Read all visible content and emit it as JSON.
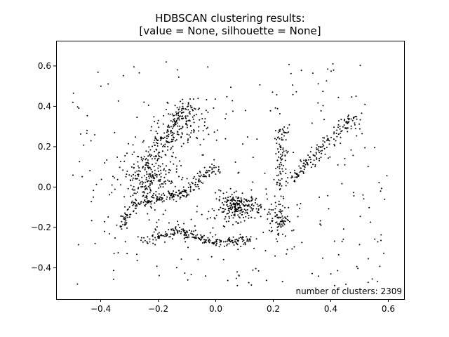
{
  "chart_data": {
    "type": "scatter",
    "title": "HDBSCAN clustering results:",
    "subtitle": "[value = None, silhouette = None]",
    "xlabel": "",
    "ylabel": "",
    "xlim": [
      -0.555,
      0.655
    ],
    "ylim": [
      -0.555,
      0.725
    ],
    "x_ticks": [
      -0.4,
      -0.2,
      0.0,
      0.2,
      0.4,
      0.6
    ],
    "y_ticks": [
      -0.4,
      -0.2,
      0.0,
      0.2,
      0.4,
      0.6
    ],
    "x_tick_labels": [
      "−0.4",
      "−0.2",
      "0.0",
      "0.2",
      "0.4",
      "0.6"
    ],
    "y_tick_labels": [
      "−0.4",
      "−0.2",
      "0.0",
      "0.2",
      "0.4",
      "0.6"
    ],
    "grid": false,
    "marker_color": "#000000",
    "annotation": "number of clusters: 2309",
    "structures": [
      {
        "kind": "line",
        "from": [
          -0.33,
          -0.22
        ],
        "to": [
          -0.29,
          -0.08
        ],
        "n": 40,
        "spread": 0.012
      },
      {
        "kind": "line",
        "from": [
          -0.29,
          -0.08
        ],
        "to": [
          -0.1,
          -0.03
        ],
        "n": 110,
        "spread": 0.012
      },
      {
        "kind": "line",
        "from": [
          -0.1,
          -0.03
        ],
        "to": [
          0.0,
          0.1
        ],
        "n": 70,
        "spread": 0.012
      },
      {
        "kind": "line",
        "from": [
          -0.25,
          -0.26
        ],
        "to": [
          -0.12,
          -0.21
        ],
        "n": 70,
        "spread": 0.012
      },
      {
        "kind": "line",
        "from": [
          -0.12,
          -0.22
        ],
        "to": [
          0.0,
          -0.28
        ],
        "n": 80,
        "spread": 0.012
      },
      {
        "kind": "line",
        "from": [
          0.0,
          -0.28
        ],
        "to": [
          0.12,
          -0.26
        ],
        "n": 70,
        "spread": 0.012
      },
      {
        "kind": "line",
        "from": [
          0.22,
          -0.01
        ],
        "to": [
          0.23,
          0.3
        ],
        "n": 90,
        "spread": 0.01
      },
      {
        "kind": "line",
        "from": [
          0.25,
          0.02
        ],
        "to": [
          0.48,
          0.35
        ],
        "n": 160,
        "spread": 0.014
      },
      {
        "kind": "line",
        "from": [
          -0.22,
          0.15
        ],
        "to": [
          -0.1,
          0.4
        ],
        "n": 130,
        "spread": 0.02
      },
      {
        "kind": "blob",
        "center": [
          0.08,
          -0.1
        ],
        "size": [
          0.07,
          0.06
        ],
        "n": 220
      },
      {
        "kind": "blob",
        "center": [
          -0.23,
          0.05
        ],
        "size": [
          0.09,
          0.12
        ],
        "n": 230
      },
      {
        "kind": "blob",
        "center": [
          -0.12,
          0.3
        ],
        "size": [
          0.08,
          0.12
        ],
        "n": 120
      },
      {
        "kind": "blob",
        "center": [
          0.22,
          -0.15
        ],
        "size": [
          0.03,
          0.09
        ],
        "n": 80
      },
      {
        "kind": "uniform",
        "xrange": [
          -0.5,
          0.6
        ],
        "yrange": [
          -0.5,
          0.62
        ],
        "n": 300
      }
    ]
  }
}
